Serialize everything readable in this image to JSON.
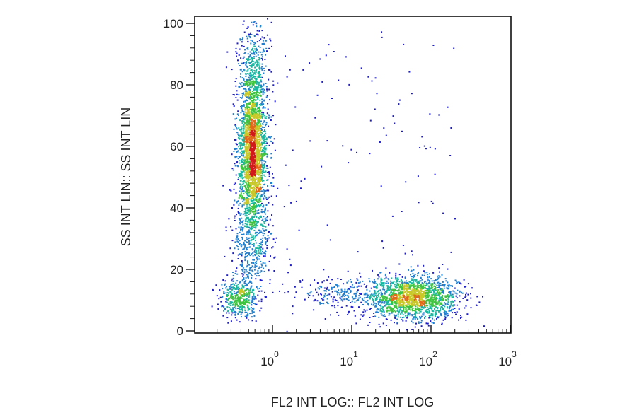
{
  "chart_data": {
    "type": "scatter",
    "subtype": "flow-cytometry density dot plot",
    "xlabel": "FL2 INT LOG:: FL2 INT LOG",
    "ylabel": "SS INT LIN:: SS INT LIN",
    "x_scale": "log",
    "xlim": [
      0.1,
      1000
    ],
    "ylim": [
      0,
      100
    ],
    "y_ticks": [
      {
        "value": 0,
        "label": "0"
      },
      {
        "value": 20,
        "label": "20"
      },
      {
        "value": 40,
        "label": "40"
      },
      {
        "value": 60,
        "label": "60"
      },
      {
        "value": 80,
        "label": "80"
      },
      {
        "value": 100,
        "label": "100"
      }
    ],
    "x_ticks": [
      {
        "value": 1,
        "base": "10",
        "exp": "0"
      },
      {
        "value": 10,
        "base": "10",
        "exp": "1"
      },
      {
        "value": 100,
        "base": "10",
        "exp": "2"
      },
      {
        "value": 1000,
        "base": "10",
        "exp": "3"
      }
    ],
    "grid": false,
    "density_colors": [
      "#1c1ccc",
      "#1f7fd0",
      "#19b7a0",
      "#3fc43f",
      "#c8c828",
      "#e06a18",
      "#d11a1a"
    ],
    "populations": [
      {
        "center_x": 0.55,
        "center_y": 58,
        "x_spread_log": 0.09,
        "y_spread": 12,
        "relative_size": 0.42
      },
      {
        "center_x": 0.55,
        "center_y": 85,
        "x_spread_log": 0.1,
        "y_spread": 10,
        "relative_size": 0.08
      },
      {
        "center_x": 0.55,
        "center_y": 30,
        "x_spread_log": 0.12,
        "y_spread": 8,
        "relative_size": 0.08
      },
      {
        "center_x": 0.38,
        "center_y": 11,
        "x_spread_log": 0.12,
        "y_spread": 3,
        "relative_size": 0.08
      },
      {
        "center_x": 60,
        "center_y": 11,
        "x_spread_log": 0.28,
        "y_spread": 3.5,
        "relative_size": 0.3
      },
      {
        "center_x": 8,
        "center_y": 12,
        "x_spread_log": 0.3,
        "y_spread": 3,
        "relative_size": 0.04
      }
    ]
  }
}
